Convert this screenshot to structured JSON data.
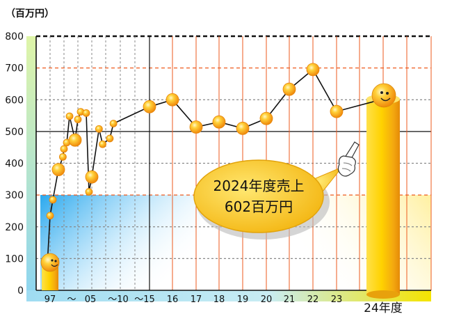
{
  "unit_label": "（百万円）",
  "callout": {
    "line1": "2024年度売上",
    "line2": "602百万円"
  },
  "colors": {
    "line": "#111111",
    "marker": "#f5a21a",
    "grid_orange": "#ee5a1e",
    "bar": "#f6c400",
    "callout_fill": "#f7c21a",
    "band_blue": "#3db0ef",
    "band_yellow": "#fff3a6"
  },
  "chart_data": {
    "type": "line",
    "ylim": [
      0,
      800
    ],
    "yticks": [
      0,
      100,
      200,
      300,
      400,
      500,
      600,
      700,
      800
    ],
    "xticks": [
      {
        "label": "97",
        "x": 1997
      },
      {
        "label": "～",
        "x": 2001
      },
      {
        "label": "05",
        "x": 2005
      },
      {
        "label": "～10",
        "x": 2009
      },
      {
        "label": "～15",
        "x": 2013
      },
      {
        "label": "16",
        "x": 2016
      },
      {
        "label": "17",
        "x": 2017
      },
      {
        "label": "18",
        "x": 2018
      },
      {
        "label": "19",
        "x": 2019
      },
      {
        "label": "20",
        "x": 2020
      },
      {
        "label": "21",
        "x": 2021
      },
      {
        "label": "22",
        "x": 2022
      },
      {
        "label": "23",
        "x": 2023
      },
      {
        "label": "24年度",
        "x": 2024
      }
    ],
    "series": [
      {
        "points": [
          {
            "x": 1997.0,
            "y": 80
          },
          {
            "x": 1997.5,
            "y": 235
          },
          {
            "x": 1998.0,
            "y": 285
          },
          {
            "x": 1999.0,
            "y": 380
          },
          {
            "x": 1999.8,
            "y": 420
          },
          {
            "x": 2000.0,
            "y": 445
          },
          {
            "x": 2000.5,
            "y": 465
          },
          {
            "x": 2001.0,
            "y": 548
          },
          {
            "x": 2002.0,
            "y": 473
          },
          {
            "x": 2002.5,
            "y": 538
          },
          {
            "x": 2003.0,
            "y": 562
          },
          {
            "x": 2004.0,
            "y": 558
          },
          {
            "x": 2004.5,
            "y": 310
          },
          {
            "x": 2005.0,
            "y": 357
          },
          {
            "x": 2006.0,
            "y": 508
          },
          {
            "x": 2006.5,
            "y": 460
          },
          {
            "x": 2007.5,
            "y": 478
          },
          {
            "x": 2008.0,
            "y": 525
          },
          {
            "x": 2015.0,
            "y": 578
          },
          {
            "x": 2016.0,
            "y": 600
          },
          {
            "x": 2017.0,
            "y": 514
          },
          {
            "x": 2018.0,
            "y": 530
          },
          {
            "x": 2019.0,
            "y": 510
          },
          {
            "x": 2020.0,
            "y": 541
          },
          {
            "x": 2021.0,
            "y": 633
          },
          {
            "x": 2022.0,
            "y": 695
          },
          {
            "x": 2023.0,
            "y": 563
          },
          {
            "x": 2024.0,
            "y": 602
          }
        ]
      }
    ],
    "highlight": {
      "x": 2024,
      "y": 602
    }
  }
}
